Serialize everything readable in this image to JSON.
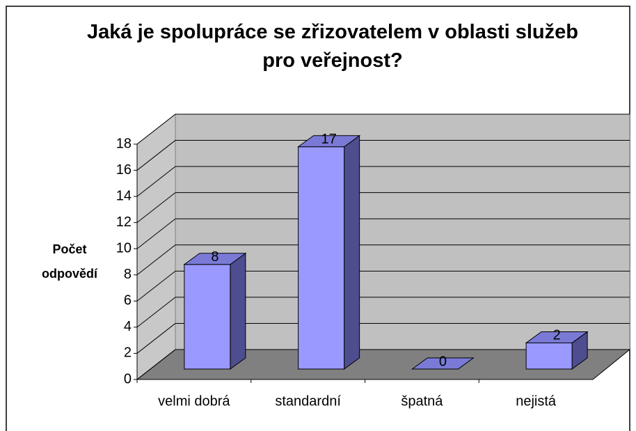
{
  "chart_data": {
    "type": "bar3d",
    "title": "Jaká je spolupráce se zřizovatelem v oblasti služeb pro veřejnost?",
    "ylabel": "Počet odpovědí",
    "categories": [
      "velmi dobrá",
      "standardní",
      "špatná",
      "nejistá"
    ],
    "values": [
      8,
      17,
      0,
      2
    ],
    "color": "#9999ff",
    "ylim": [
      0,
      18
    ],
    "yticks": [
      0,
      2,
      4,
      6,
      8,
      10,
      12,
      14,
      16,
      18
    ],
    "grid": true
  }
}
